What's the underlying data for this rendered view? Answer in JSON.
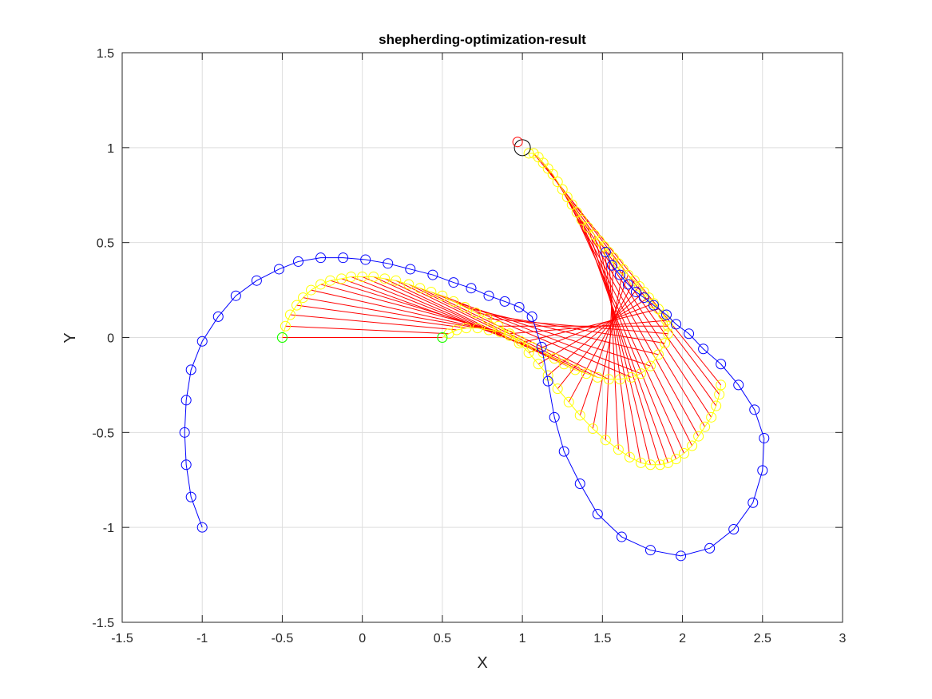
{
  "chart_data": {
    "type": "line",
    "title": "shepherding-optimization-result",
    "xlabel": "X",
    "ylabel": "Y",
    "xlim": [
      -1.5,
      3
    ],
    "ylim": [
      -1.5,
      1.5
    ],
    "xticks": [
      "-1.5",
      "-1",
      "-0.5",
      "0",
      "0.5",
      "1",
      "1.5",
      "2",
      "2.5",
      "3"
    ],
    "xtick_values": [
      -1.5,
      -1,
      -0.5,
      0,
      0.5,
      1,
      1.5,
      2,
      2.5,
      3
    ],
    "yticks": [
      "-1.5",
      "-1",
      "-0.5",
      "0",
      "0.5",
      "1",
      "1.5"
    ],
    "ytick_values": [
      -1.5,
      -1,
      -0.5,
      0,
      0.5,
      1,
      1.5
    ],
    "grid": true,
    "colors": {
      "shepherd": "#0000ff",
      "sheep": "#ffff00",
      "link": "#ff0000",
      "start": "#00ff00",
      "goal": "#ff0000",
      "goal_region": "#000000"
    },
    "series": [
      {
        "role": "shepherd-path",
        "color": "#0000ff",
        "x": [
          -1.0,
          -1.07,
          -1.1,
          -1.11,
          -1.1,
          -1.07,
          -1.0,
          -0.9,
          -0.79,
          -0.66,
          -0.52,
          -0.4,
          -0.26,
          -0.12,
          0.02,
          0.16,
          0.3,
          0.44,
          0.57,
          0.68,
          0.79,
          0.89,
          0.98,
          1.06,
          1.12,
          1.16,
          1.2,
          1.26,
          1.36,
          1.47,
          1.62,
          1.8,
          1.99,
          2.17,
          2.32,
          2.44,
          2.5,
          2.51,
          2.45,
          2.35,
          2.24,
          2.13,
          2.04,
          1.96,
          1.9,
          1.82,
          1.76,
          1.71,
          1.66,
          1.61,
          1.56,
          1.52
        ],
        "y": [
          -1.0,
          -0.84,
          -0.67,
          -0.5,
          -0.33,
          -0.17,
          -0.02,
          0.11,
          0.22,
          0.3,
          0.36,
          0.4,
          0.42,
          0.42,
          0.41,
          0.39,
          0.36,
          0.33,
          0.29,
          0.26,
          0.22,
          0.19,
          0.16,
          0.11,
          -0.05,
          -0.23,
          -0.42,
          -0.6,
          -0.77,
          -0.93,
          -1.05,
          -1.12,
          -1.15,
          -1.11,
          -1.01,
          -0.87,
          -0.7,
          -0.53,
          -0.38,
          -0.25,
          -0.14,
          -0.06,
          0.02,
          0.07,
          0.12,
          0.17,
          0.21,
          0.24,
          0.28,
          0.33,
          0.38,
          0.45
        ]
      },
      {
        "role": "sheep-1-path",
        "color": "#ffff00",
        "x": [
          -0.5,
          -0.48,
          -0.45,
          -0.41,
          -0.37,
          -0.32,
          -0.26,
          -0.2,
          -0.13,
          -0.07,
          0.0,
          0.07,
          0.14,
          0.21,
          0.29,
          0.36,
          0.43,
          0.5,
          0.57,
          0.64,
          0.71,
          0.78,
          0.85,
          0.92,
          0.98,
          1.04,
          1.1,
          1.16,
          1.22,
          1.29,
          1.36,
          1.44,
          1.52,
          1.6,
          1.67,
          1.74,
          1.8,
          1.86,
          1.91,
          1.96,
          2.01,
          2.06,
          2.1,
          2.14,
          2.18,
          2.21,
          2.23,
          2.24
        ],
        "y": [
          0.0,
          0.06,
          0.12,
          0.17,
          0.21,
          0.25,
          0.28,
          0.3,
          0.31,
          0.32,
          0.32,
          0.32,
          0.31,
          0.3,
          0.28,
          0.26,
          0.24,
          0.22,
          0.19,
          0.16,
          0.13,
          0.1,
          0.06,
          0.02,
          -0.03,
          -0.08,
          -0.14,
          -0.2,
          -0.27,
          -0.34,
          -0.41,
          -0.48,
          -0.54,
          -0.59,
          -0.63,
          -0.66,
          -0.67,
          -0.67,
          -0.66,
          -0.64,
          -0.61,
          -0.57,
          -0.52,
          -0.47,
          -0.42,
          -0.36,
          -0.3,
          -0.25
        ]
      },
      {
        "role": "sheep-2-path",
        "color": "#ffff00",
        "x": [
          0.5,
          0.54,
          0.59,
          0.65,
          0.72,
          0.79,
          0.86,
          0.92,
          0.99,
          1.06,
          1.13,
          1.2,
          1.26,
          1.33,
          1.4,
          1.47,
          1.54,
          1.61,
          1.68,
          1.74,
          1.8,
          1.85,
          1.89,
          1.91,
          1.91,
          1.9,
          1.88,
          1.85,
          1.82,
          1.79,
          1.76,
          1.73,
          1.7,
          1.66,
          1.63,
          1.6,
          1.57,
          1.54,
          1.51,
          1.48,
          1.45,
          1.41,
          1.37,
          1.34,
          1.31,
          1.28,
          1.25,
          1.22,
          1.19,
          1.16,
          1.13,
          1.1,
          1.07,
          1.04
        ],
        "y": [
          0.0,
          0.02,
          0.04,
          0.05,
          0.05,
          0.04,
          0.03,
          0.01,
          -0.02,
          -0.05,
          -0.08,
          -0.11,
          -0.14,
          -0.17,
          -0.19,
          -0.21,
          -0.22,
          -0.22,
          -0.21,
          -0.19,
          -0.15,
          -0.09,
          -0.03,
          0.02,
          0.06,
          0.09,
          0.12,
          0.15,
          0.18,
          0.21,
          0.24,
          0.27,
          0.3,
          0.33,
          0.36,
          0.39,
          0.42,
          0.45,
          0.48,
          0.51,
          0.54,
          0.58,
          0.62,
          0.66,
          0.7,
          0.74,
          0.78,
          0.82,
          0.86,
          0.89,
          0.92,
          0.95,
          0.97,
          0.97
        ]
      },
      {
        "role": "start-points",
        "color": "#00ff00",
        "x": [
          -0.5,
          0.5
        ],
        "y": [
          0.0,
          0.0
        ]
      },
      {
        "role": "goal-point",
        "color": "#ff0000",
        "x": [
          0.97
        ],
        "y": [
          1.03
        ]
      },
      {
        "role": "goal-region",
        "color": "#000000",
        "x": [
          1.0
        ],
        "y": [
          1.0
        ],
        "radius": 0.05
      }
    ],
    "links": [
      {
        "from_series": 1,
        "to_series": 0,
        "pairs": "sheep-1 to shepherd along first segment"
      },
      {
        "from_series": 2,
        "to_series": 0,
        "pairs": "sheep-2 to shepherd along second segment"
      }
    ]
  }
}
